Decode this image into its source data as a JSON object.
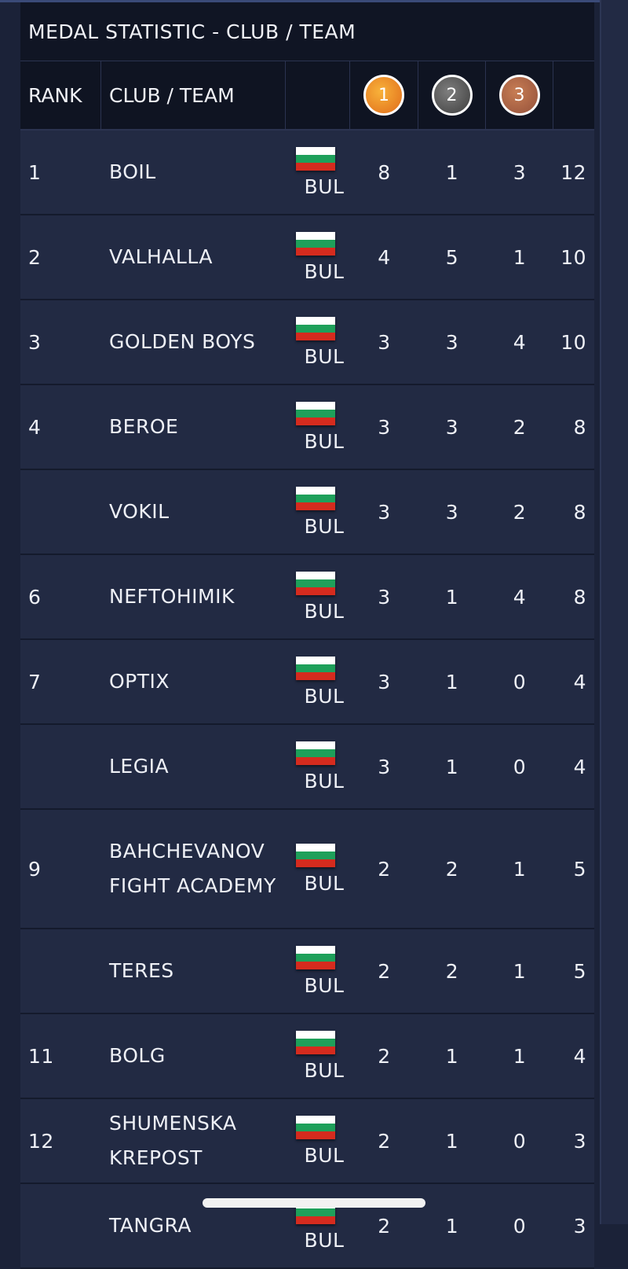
{
  "title": "MEDAL STATISTIC - CLUB / TEAM",
  "headers": {
    "rank": "RANK",
    "club": "CLUB / TEAM",
    "gold": "1",
    "silver": "2",
    "bronze": "3"
  },
  "colors": {
    "gold_medal": "#e9852a",
    "silver_medal": "#5a5a5a",
    "bronze_medal": "#a9603f",
    "flag_white": "#ffffff",
    "flag_green": "#1ea05a",
    "flag_red": "#d52b1e"
  },
  "rows": [
    {
      "rank": "1",
      "club": "BOIL",
      "country": "BUL",
      "gold": "8",
      "silver": "1",
      "bronze": "3",
      "total": "12"
    },
    {
      "rank": "2",
      "club": "VALHALLA",
      "country": "BUL",
      "gold": "4",
      "silver": "5",
      "bronze": "1",
      "total": "10"
    },
    {
      "rank": "3",
      "club": "GOLDEN BOYS",
      "country": "BUL",
      "gold": "3",
      "silver": "3",
      "bronze": "4",
      "total": "10"
    },
    {
      "rank": "4",
      "club": "BEROE",
      "country": "BUL",
      "gold": "3",
      "silver": "3",
      "bronze": "2",
      "total": "8"
    },
    {
      "rank": "",
      "club": "VOKIL",
      "country": "BUL",
      "gold": "3",
      "silver": "3",
      "bronze": "2",
      "total": "8"
    },
    {
      "rank": "6",
      "club": "NEFTOHIMIK",
      "country": "BUL",
      "gold": "3",
      "silver": "1",
      "bronze": "4",
      "total": "8"
    },
    {
      "rank": "7",
      "club": "OPTIX",
      "country": "BUL",
      "gold": "3",
      "silver": "1",
      "bronze": "0",
      "total": "4"
    },
    {
      "rank": "",
      "club": "LEGIA",
      "country": "BUL",
      "gold": "3",
      "silver": "1",
      "bronze": "0",
      "total": "4"
    },
    {
      "rank": "9",
      "club": "BAHCHEVANOV FIGHT ACADEMY",
      "country": "BUL",
      "gold": "2",
      "silver": "2",
      "bronze": "1",
      "total": "5"
    },
    {
      "rank": "",
      "club": "TERES",
      "country": "BUL",
      "gold": "2",
      "silver": "2",
      "bronze": "1",
      "total": "5"
    },
    {
      "rank": "11",
      "club": "BOLG",
      "country": "BUL",
      "gold": "2",
      "silver": "1",
      "bronze": "1",
      "total": "4"
    },
    {
      "rank": "12",
      "club": "SHUMENSKA KREPOST",
      "country": "BUL",
      "gold": "2",
      "silver": "1",
      "bronze": "0",
      "total": "3"
    },
    {
      "rank": "",
      "club": "TANGRA",
      "country": "BUL",
      "gold": "2",
      "silver": "1",
      "bronze": "0",
      "total": "3"
    }
  ]
}
